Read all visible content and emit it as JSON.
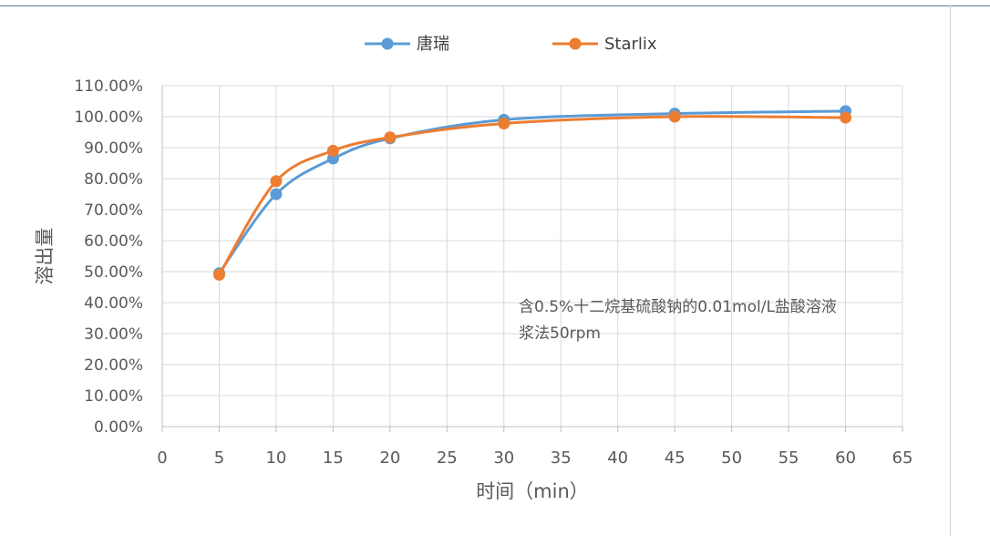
{
  "chart_data": {
    "type": "line",
    "x": [
      5,
      10,
      15,
      20,
      30,
      45,
      60
    ],
    "series": [
      {
        "name": "唐瑞",
        "color": "#5b9bd5",
        "values": [
          49.5,
          75.0,
          86.5,
          93.0,
          99.0,
          101.0,
          101.8
        ]
      },
      {
        "name": "Starlix",
        "color": "#ed7d31",
        "values": [
          49.0,
          79.2,
          89.0,
          93.3,
          97.8,
          100.0,
          99.7
        ]
      }
    ],
    "xlabel": "时间（min）",
    "ylabel": "溶出量",
    "xlim": [
      0,
      65
    ],
    "ylim": [
      0,
      110
    ],
    "x_ticks": [
      "0",
      "5",
      "10",
      "15",
      "20",
      "25",
      "30",
      "35",
      "40",
      "45",
      "50",
      "55",
      "60",
      "65"
    ],
    "y_ticks": [
      "0.00%",
      "10.00%",
      "20.00%",
      "30.00%",
      "40.00%",
      "50.00%",
      "60.00%",
      "70.00%",
      "80.00%",
      "90.00%",
      "100.00%",
      "110.00%"
    ],
    "annotation": [
      "含0.5%十二烷基硫酸钠的0.01mol/L盐酸溶液",
      "浆法50rpm"
    ],
    "legend_position": "top",
    "grid": true,
    "smooth": true
  }
}
